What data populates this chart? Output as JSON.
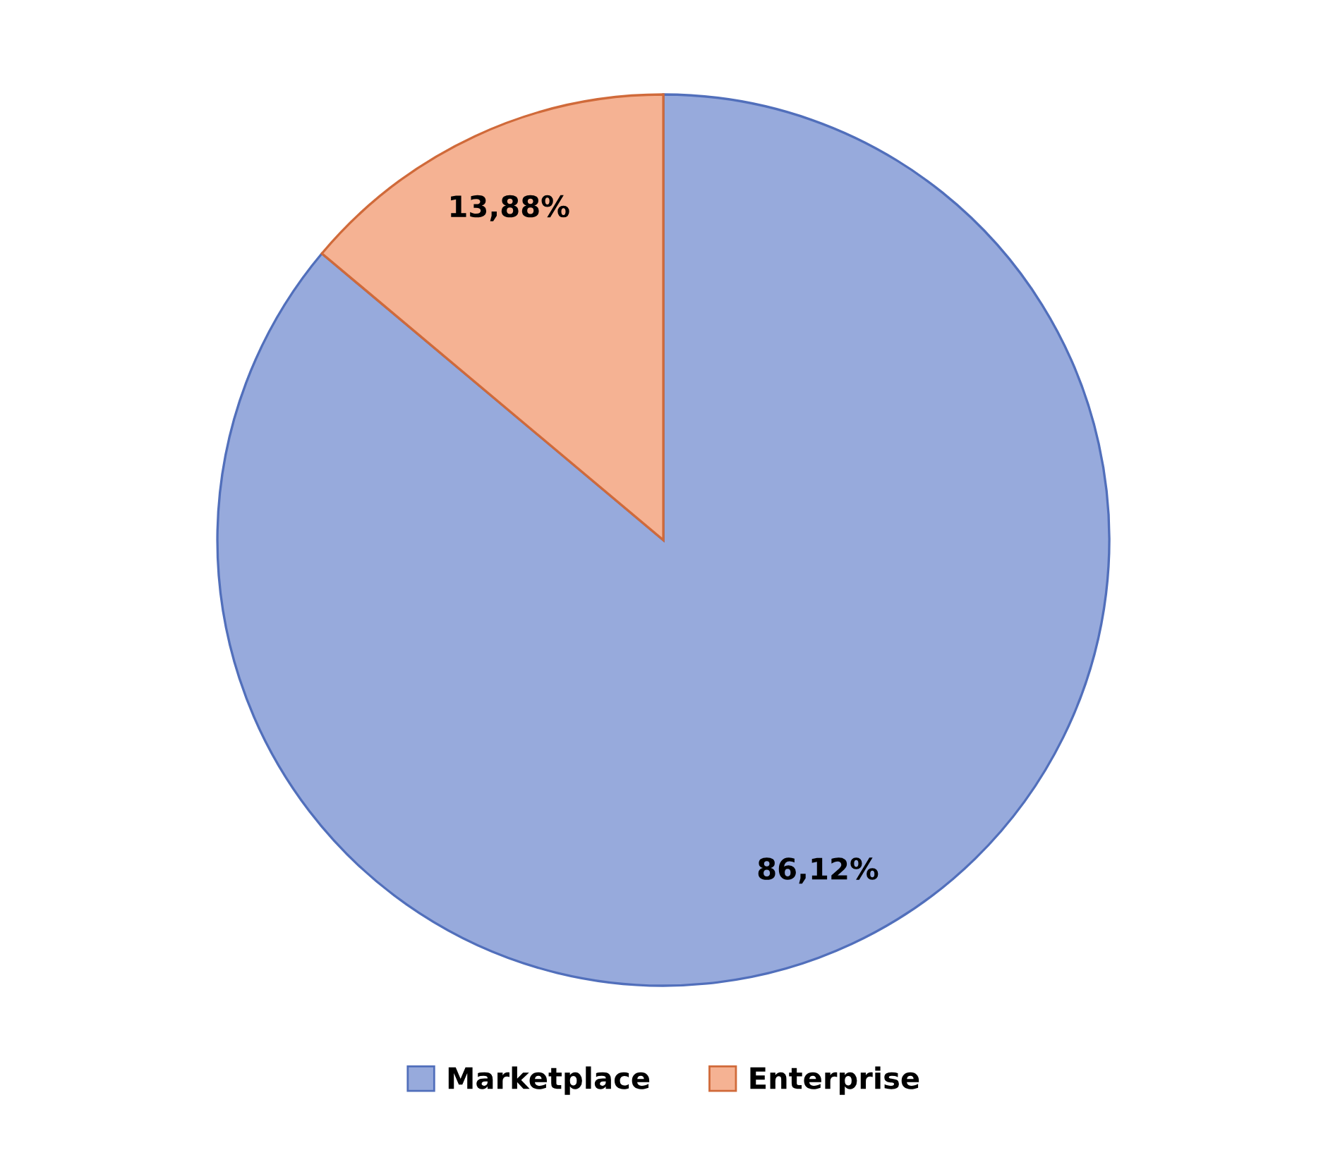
{
  "chart_data": {
    "type": "pie",
    "categories": [
      "Marketplace",
      "Enterprise"
    ],
    "values": [
      86.12,
      13.88
    ],
    "value_labels": [
      "86,12%",
      "13,88%"
    ],
    "colors": [
      "#97aadc",
      "#f5b293"
    ],
    "legend": "bottom"
  }
}
